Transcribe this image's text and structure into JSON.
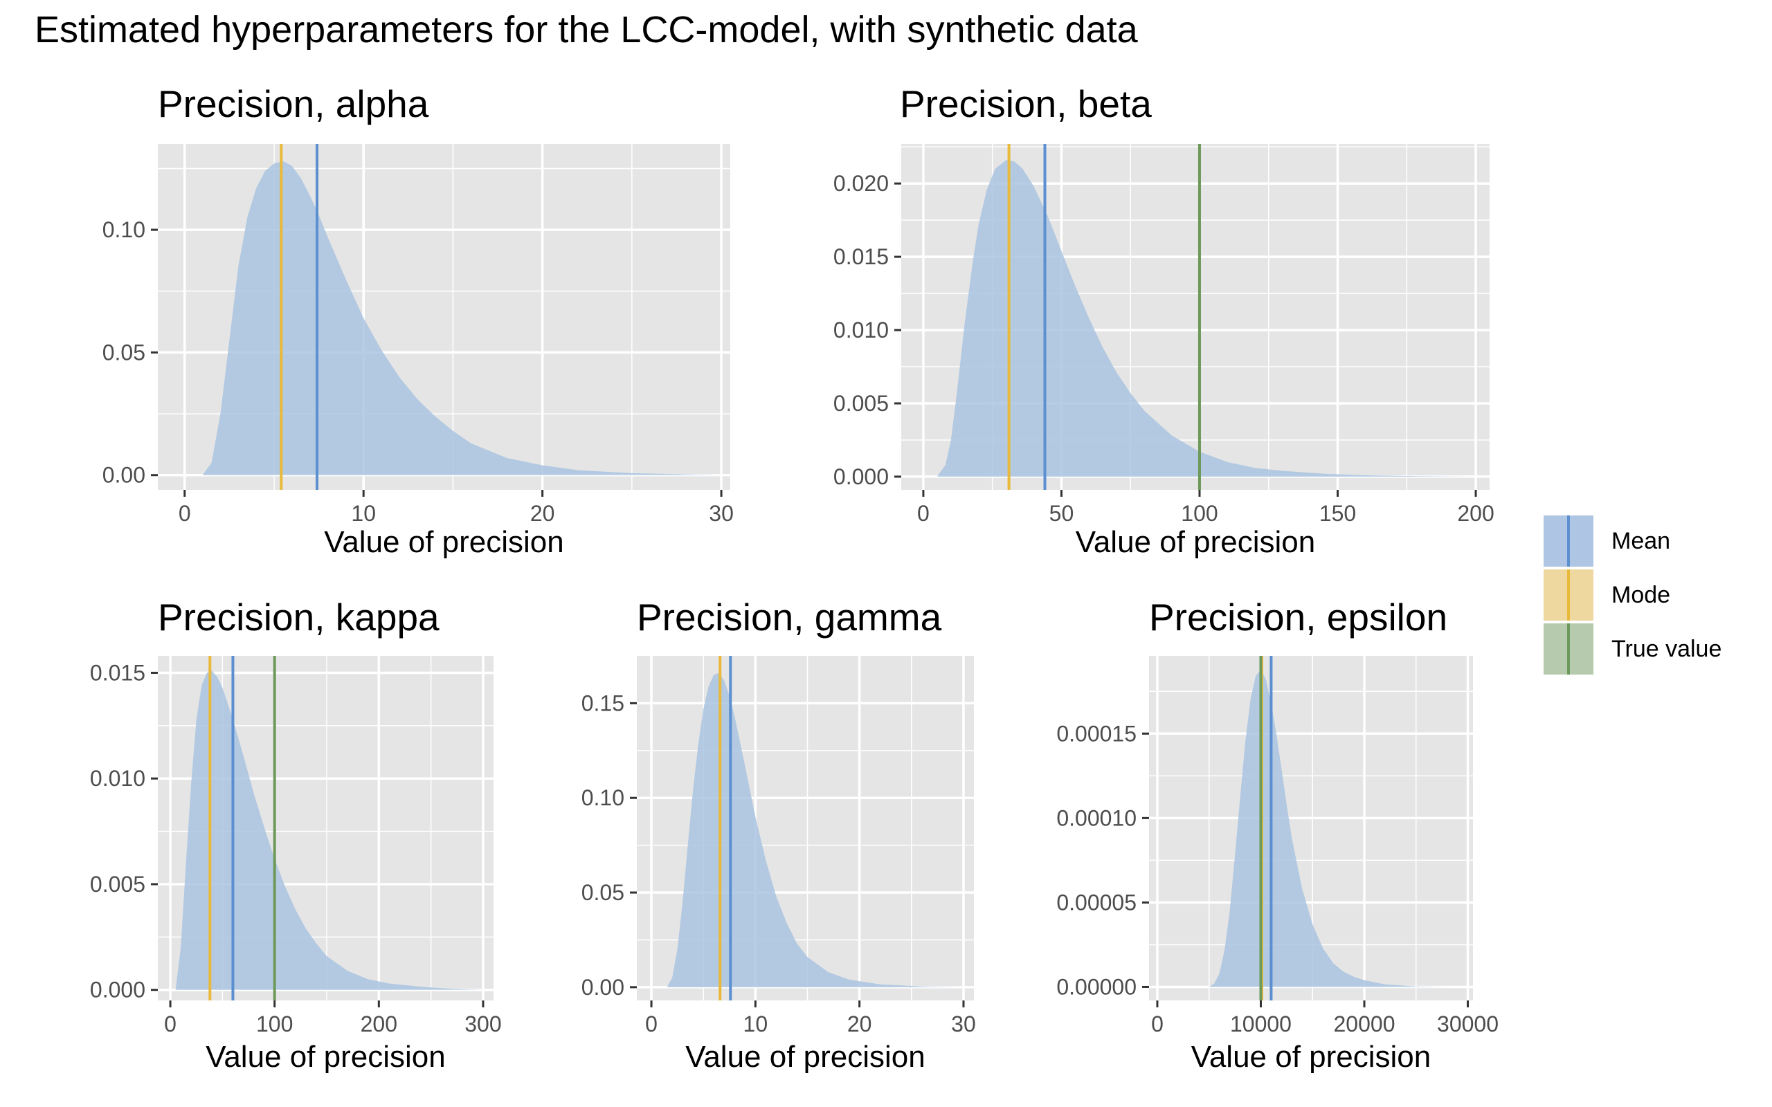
{
  "title": "Estimated hyperparameters for the LCC-model, with synthetic data",
  "colors": {
    "density": "#aac4e0",
    "mean": "#5b8fd0",
    "mode": "#e8b93a",
    "true": "#6d9a5a",
    "panel_bg": "#e5e5e5",
    "grid": "#ffffff"
  },
  "legend": {
    "items": [
      {
        "label": "Mean",
        "key": "mean",
        "color": "#5b8fd0"
      },
      {
        "label": "Mode",
        "key": "mode",
        "color": "#e8b93a"
      },
      {
        "label": "True value",
        "key": "true",
        "color": "#6d9a5a"
      }
    ]
  },
  "chart_data": [
    {
      "type": "area",
      "title": "Precision, alpha",
      "xlabel": "Value of precision",
      "ylabel": "",
      "xlim": [
        -1.5,
        30.5
      ],
      "ylim": [
        -0.006,
        0.135
      ],
      "xticks": [
        0,
        10,
        20,
        30
      ],
      "xticklabels": [
        "0",
        "10",
        "20",
        "30"
      ],
      "yticks": [
        0,
        0.05,
        0.1
      ],
      "yticklabels": [
        "0.00",
        "0.05",
        "0.10"
      ],
      "density": {
        "x": [
          1.0,
          1.5,
          2.0,
          2.5,
          3.0,
          3.5,
          4.0,
          4.5,
          5.0,
          5.5,
          6.0,
          6.5,
          7.0,
          7.5,
          8.0,
          9.0,
          10.0,
          11.0,
          12.0,
          13.0,
          14.0,
          15.0,
          16.0,
          17.0,
          18.0,
          20.0,
          22.0,
          25.0,
          30.0
        ],
        "y": [
          0.0,
          0.005,
          0.025,
          0.055,
          0.085,
          0.105,
          0.117,
          0.124,
          0.127,
          0.128,
          0.126,
          0.121,
          0.114,
          0.106,
          0.097,
          0.08,
          0.064,
          0.051,
          0.04,
          0.031,
          0.024,
          0.018,
          0.013,
          0.01,
          0.007,
          0.004,
          0.002,
          0.0008,
          0.0
        ]
      },
      "mean": 7.4,
      "mode": 5.4,
      "true_value": null
    },
    {
      "type": "area",
      "title": "Precision, beta",
      "xlabel": "Value of precision",
      "ylabel": "",
      "xlim": [
        -8,
        205
      ],
      "ylim": [
        -0.0009,
        0.0227
      ],
      "xticks": [
        0,
        50,
        100,
        150,
        200
      ],
      "xticklabels": [
        "0",
        "50",
        "100",
        "150",
        "200"
      ],
      "yticks": [
        0,
        0.005,
        0.01,
        0.015,
        0.02
      ],
      "yticklabels": [
        "0.000",
        "0.005",
        "0.010",
        "0.015",
        "0.020"
      ],
      "density": {
        "x": [
          5,
          8,
          10,
          12,
          15,
          18,
          20,
          23,
          26,
          30,
          33,
          36,
          40,
          45,
          50,
          55,
          60,
          65,
          70,
          75,
          80,
          90,
          100,
          110,
          120,
          130,
          145,
          160,
          180,
          200
        ],
        "y": [
          0.0,
          0.0008,
          0.0025,
          0.0055,
          0.0105,
          0.0148,
          0.0172,
          0.0196,
          0.021,
          0.0216,
          0.0215,
          0.021,
          0.0198,
          0.0178,
          0.0154,
          0.013,
          0.0108,
          0.0088,
          0.0071,
          0.0057,
          0.0045,
          0.0028,
          0.0017,
          0.001,
          0.0006,
          0.0004,
          0.0002,
          0.0001,
          3e-05,
          0.0
        ]
      },
      "mean": 44,
      "mode": 31,
      "true_value": 100
    },
    {
      "type": "area",
      "title": "Precision, kappa",
      "xlabel": "Value of precision",
      "ylabel": "",
      "xlim": [
        -12,
        310
      ],
      "ylim": [
        -0.0005,
        0.0158
      ],
      "xticks": [
        0,
        100,
        200,
        300
      ],
      "xticklabels": [
        "0",
        "100",
        "200",
        "300"
      ],
      "yticks": [
        0,
        0.005,
        0.01,
        0.015
      ],
      "yticklabels": [
        "0.000",
        "0.005",
        "0.010",
        "0.015"
      ],
      "density": {
        "x": [
          5,
          10,
          15,
          20,
          25,
          30,
          35,
          40,
          45,
          50,
          60,
          70,
          80,
          90,
          100,
          110,
          120,
          130,
          140,
          150,
          170,
          190,
          210,
          240,
          270,
          300
        ],
        "y": [
          0.0,
          0.002,
          0.006,
          0.0098,
          0.0128,
          0.0144,
          0.015,
          0.0151,
          0.0148,
          0.0143,
          0.0128,
          0.0111,
          0.0093,
          0.0077,
          0.0062,
          0.0049,
          0.0038,
          0.0029,
          0.0022,
          0.0016,
          0.0009,
          0.0005,
          0.0003,
          0.00015,
          5e-05,
          0.0
        ]
      },
      "mean": 60,
      "mode": 38,
      "true_value": 100
    },
    {
      "type": "area",
      "title": "Precision, gamma",
      "xlabel": "Value of precision",
      "ylabel": "",
      "xlim": [
        -1.4,
        31
      ],
      "ylim": [
        -0.007,
        0.175
      ],
      "xticks": [
        0,
        10,
        20,
        30
      ],
      "xticklabels": [
        "0",
        "10",
        "20",
        "30"
      ],
      "yticks": [
        0,
        0.05,
        0.1,
        0.15
      ],
      "yticklabels": [
        "0.00",
        "0.05",
        "0.10",
        "0.15"
      ],
      "density": {
        "x": [
          1.5,
          2.0,
          2.5,
          3.0,
          3.5,
          4.0,
          4.5,
          5.0,
          5.5,
          6.0,
          6.5,
          7.0,
          7.5,
          8.0,
          8.5,
          9.0,
          10.0,
          11.0,
          12.0,
          13.0,
          14.0,
          15.0,
          17.0,
          19.0,
          22.0,
          26.0,
          30.0
        ],
        "y": [
          0.0,
          0.005,
          0.02,
          0.045,
          0.075,
          0.104,
          0.128,
          0.147,
          0.159,
          0.165,
          0.166,
          0.162,
          0.154,
          0.143,
          0.13,
          0.117,
          0.09,
          0.067,
          0.048,
          0.034,
          0.023,
          0.016,
          0.008,
          0.004,
          0.0015,
          0.0004,
          0.0
        ]
      },
      "mean": 7.6,
      "mode": 6.6,
      "true_value": null
    },
    {
      "type": "area",
      "title": "Precision, epsilon",
      "xlabel": "Value of precision",
      "ylabel": "",
      "xlim": [
        -800,
        30500
      ],
      "ylim": [
        -8e-06,
        0.000196
      ],
      "xticks": [
        0,
        10000,
        20000,
        30000
      ],
      "xticklabels": [
        "0",
        "10000",
        "20000",
        "30000"
      ],
      "yticks": [
        0,
        5e-05,
        0.0001,
        0.00015
      ],
      "yticklabels": [
        "0.00000",
        "0.00005",
        "0.00010",
        "0.00015"
      ],
      "density": {
        "x": [
          5000,
          5500,
          6000,
          6500,
          7000,
          7500,
          8000,
          8500,
          9000,
          9500,
          10000,
          10500,
          11000,
          11500,
          12000,
          12500,
          13000,
          14000,
          15000,
          16000,
          17000,
          18000,
          19000,
          20000,
          22000,
          25000,
          28000
        ],
        "y": [
          0.0,
          2e-06,
          8e-06,
          2.2e-05,
          4.5e-05,
          7.8e-05,
          0.000112,
          0.000145,
          0.00017,
          0.000184,
          0.000188,
          0.000182,
          0.000168,
          0.00015,
          0.000129,
          0.000108,
          8.8e-05,
          5.8e-05,
          3.7e-05,
          2.3e-05,
          1.4e-05,
          9e-06,
          6e-06,
          4e-06,
          1.5e-06,
          3e-07,
          0.0
        ]
      },
      "mean": 11000,
      "mode": 10100,
      "true_value": 10000
    }
  ]
}
